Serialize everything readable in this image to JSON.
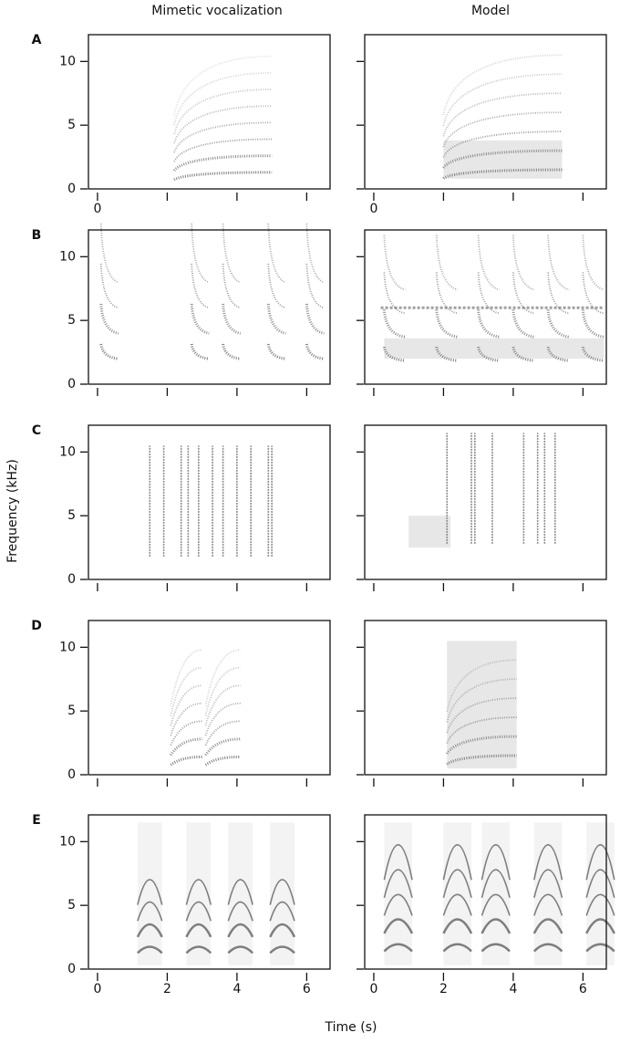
{
  "column_titles": [
    "Mimetic vocalization",
    "Model"
  ],
  "y_label": "Frequency (kHz)",
  "x_label": "Time (s)",
  "ylim": [
    0,
    12.1
  ],
  "yticks": [
    0,
    5,
    10
  ],
  "xlim": [
    -0.26,
    6.67
  ],
  "xticks": [
    0,
    2,
    4,
    6
  ],
  "rows": [
    {
      "label": "A",
      "xtick_labels": [
        0
      ]
    },
    {
      "label": "B"
    },
    {
      "label": "C"
    },
    {
      "label": "D"
    },
    {
      "label": "E",
      "xtick_labels": [
        0,
        2,
        4,
        6
      ]
    }
  ]
}
